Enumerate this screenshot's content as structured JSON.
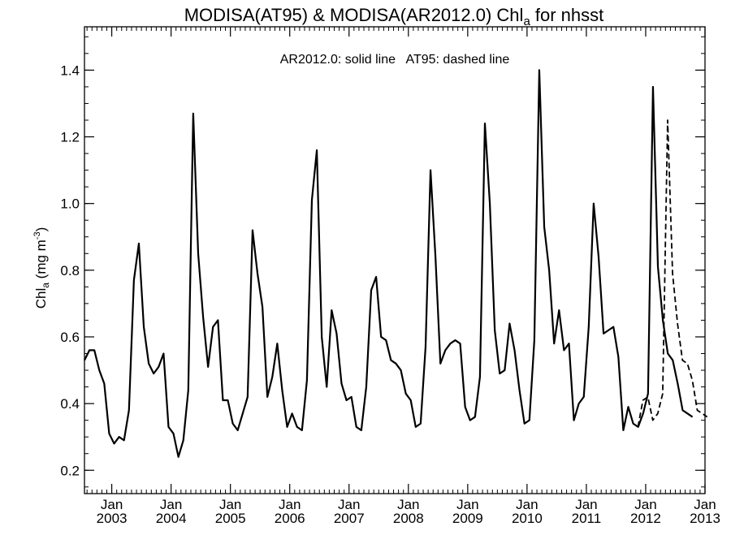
{
  "chart_data": {
    "type": "line",
    "title": {
      "prefix": "MODISA(AT95) & MODISA(AR2012.0)  Chl",
      "subscript": "a",
      "suffix": " for nhsst"
    },
    "ylabel": {
      "main": "Chl",
      "subscript": "a",
      "unit_prefix": " (mg m",
      "superscript": "-3",
      "unit_suffix": ")"
    },
    "annotation": "AR2012.0: solid line   AT95: dashed line",
    "xlim": [
      2002.54,
      2013.0
    ],
    "ylim": [
      0.13,
      1.53
    ],
    "yticks": [
      0.2,
      0.4,
      0.6,
      0.8,
      1.0,
      1.2,
      1.4
    ],
    "ytick_labels": [
      "0.2",
      "0.4",
      "0.6",
      "0.8",
      "1.0",
      "1.2",
      "1.4"
    ],
    "yminor_step": 0.05,
    "xticks": [
      2003,
      2004,
      2005,
      2006,
      2007,
      2008,
      2009,
      2010,
      2011,
      2012,
      2013
    ],
    "xtick_month_label": "Jan",
    "xtick_year_labels": [
      "2003",
      "2004",
      "2005",
      "2006",
      "2007",
      "2008",
      "2009",
      "2010",
      "2011",
      "2012",
      "2013"
    ],
    "x_minor_per_year": 12,
    "grid": false,
    "series": [
      {
        "name": "AR2012.0",
        "style": "solid",
        "color": "#000000",
        "x_start": 2002.54,
        "x_step": 0.08333,
        "values": [
          0.53,
          0.56,
          0.56,
          0.5,
          0.46,
          0.31,
          0.28,
          0.3,
          0.29,
          0.38,
          0.77,
          0.88,
          0.63,
          0.52,
          0.49,
          0.51,
          0.55,
          0.33,
          0.31,
          0.24,
          0.29,
          0.44,
          1.27,
          0.85,
          0.66,
          0.51,
          0.63,
          0.65,
          0.41,
          0.41,
          0.34,
          0.32,
          0.37,
          0.42,
          0.92,
          0.79,
          0.69,
          0.42,
          0.48,
          0.58,
          0.44,
          0.33,
          0.37,
          0.33,
          0.32,
          0.47,
          1.01,
          1.16,
          0.6,
          0.45,
          0.68,
          0.61,
          0.46,
          0.41,
          0.42,
          0.33,
          0.32,
          0.45,
          0.74,
          0.78,
          0.6,
          0.59,
          0.53,
          0.52,
          0.5,
          0.43,
          0.41,
          0.33,
          0.34,
          0.57,
          1.1,
          0.84,
          0.52,
          0.56,
          0.58,
          0.59,
          0.58,
          0.39,
          0.35,
          0.36,
          0.48,
          1.24,
          1.0,
          0.62,
          0.49,
          0.5,
          0.64,
          0.56,
          0.44,
          0.34,
          0.35,
          0.59,
          1.4,
          0.93,
          0.8,
          0.58,
          0.68,
          0.56,
          0.58,
          0.35,
          0.4,
          0.42,
          0.63,
          1.0,
          0.84,
          0.61,
          0.62,
          0.63,
          0.54,
          0.32,
          0.39,
          0.34,
          0.33,
          0.37,
          0.43,
          1.35,
          0.81,
          0.65,
          0.55,
          0.53,
          0.46,
          0.38,
          0.37,
          0.36
        ]
      },
      {
        "name": "AT95",
        "style": "dashed",
        "color": "#000000",
        "x_start": 2011.87,
        "x_step": 0.08333,
        "values": [
          0.33,
          0.41,
          0.42,
          0.35,
          0.37,
          0.43,
          1.25,
          0.79,
          0.64,
          0.53,
          0.52,
          0.47,
          0.38,
          0.37,
          0.36
        ]
      }
    ]
  }
}
